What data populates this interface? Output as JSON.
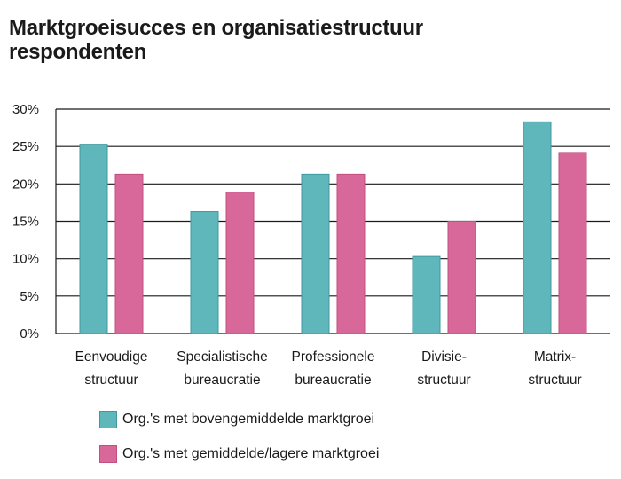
{
  "title_line1": "Marktgroeisucces en organisatiestructuur",
  "title_line2": "respondenten",
  "colors": {
    "series1": "#5fb6bb",
    "series1_stroke": "#3f9aa0",
    "series2": "#d8679a",
    "series2_stroke": "#c2507f",
    "axis": "#1a1a1a"
  },
  "chart_data": {
    "type": "bar",
    "categories": [
      [
        "Eenvoudige",
        "structuur"
      ],
      [
        "Specialistische",
        "bureaucratie"
      ],
      [
        "Professionele",
        "bureaucratie"
      ],
      [
        "Divisie-",
        "structuur"
      ],
      [
        "Matrix-",
        "structuur"
      ]
    ],
    "series": [
      {
        "name": "Org.'s met bovengemiddelde marktgroei",
        "values": [
          25.3,
          16.3,
          21.3,
          10.3,
          28.3
        ]
      },
      {
        "name": "Org.'s met gemiddelde/lagere marktgroei",
        "values": [
          21.3,
          18.9,
          21.3,
          15.0,
          24.2
        ]
      }
    ],
    "yticks": [
      "30%",
      "25%",
      "20%",
      "15%",
      "10%",
      "5%",
      "0%"
    ],
    "ylim": [
      0,
      30
    ],
    "grid": true,
    "legend": "bottom-left"
  }
}
